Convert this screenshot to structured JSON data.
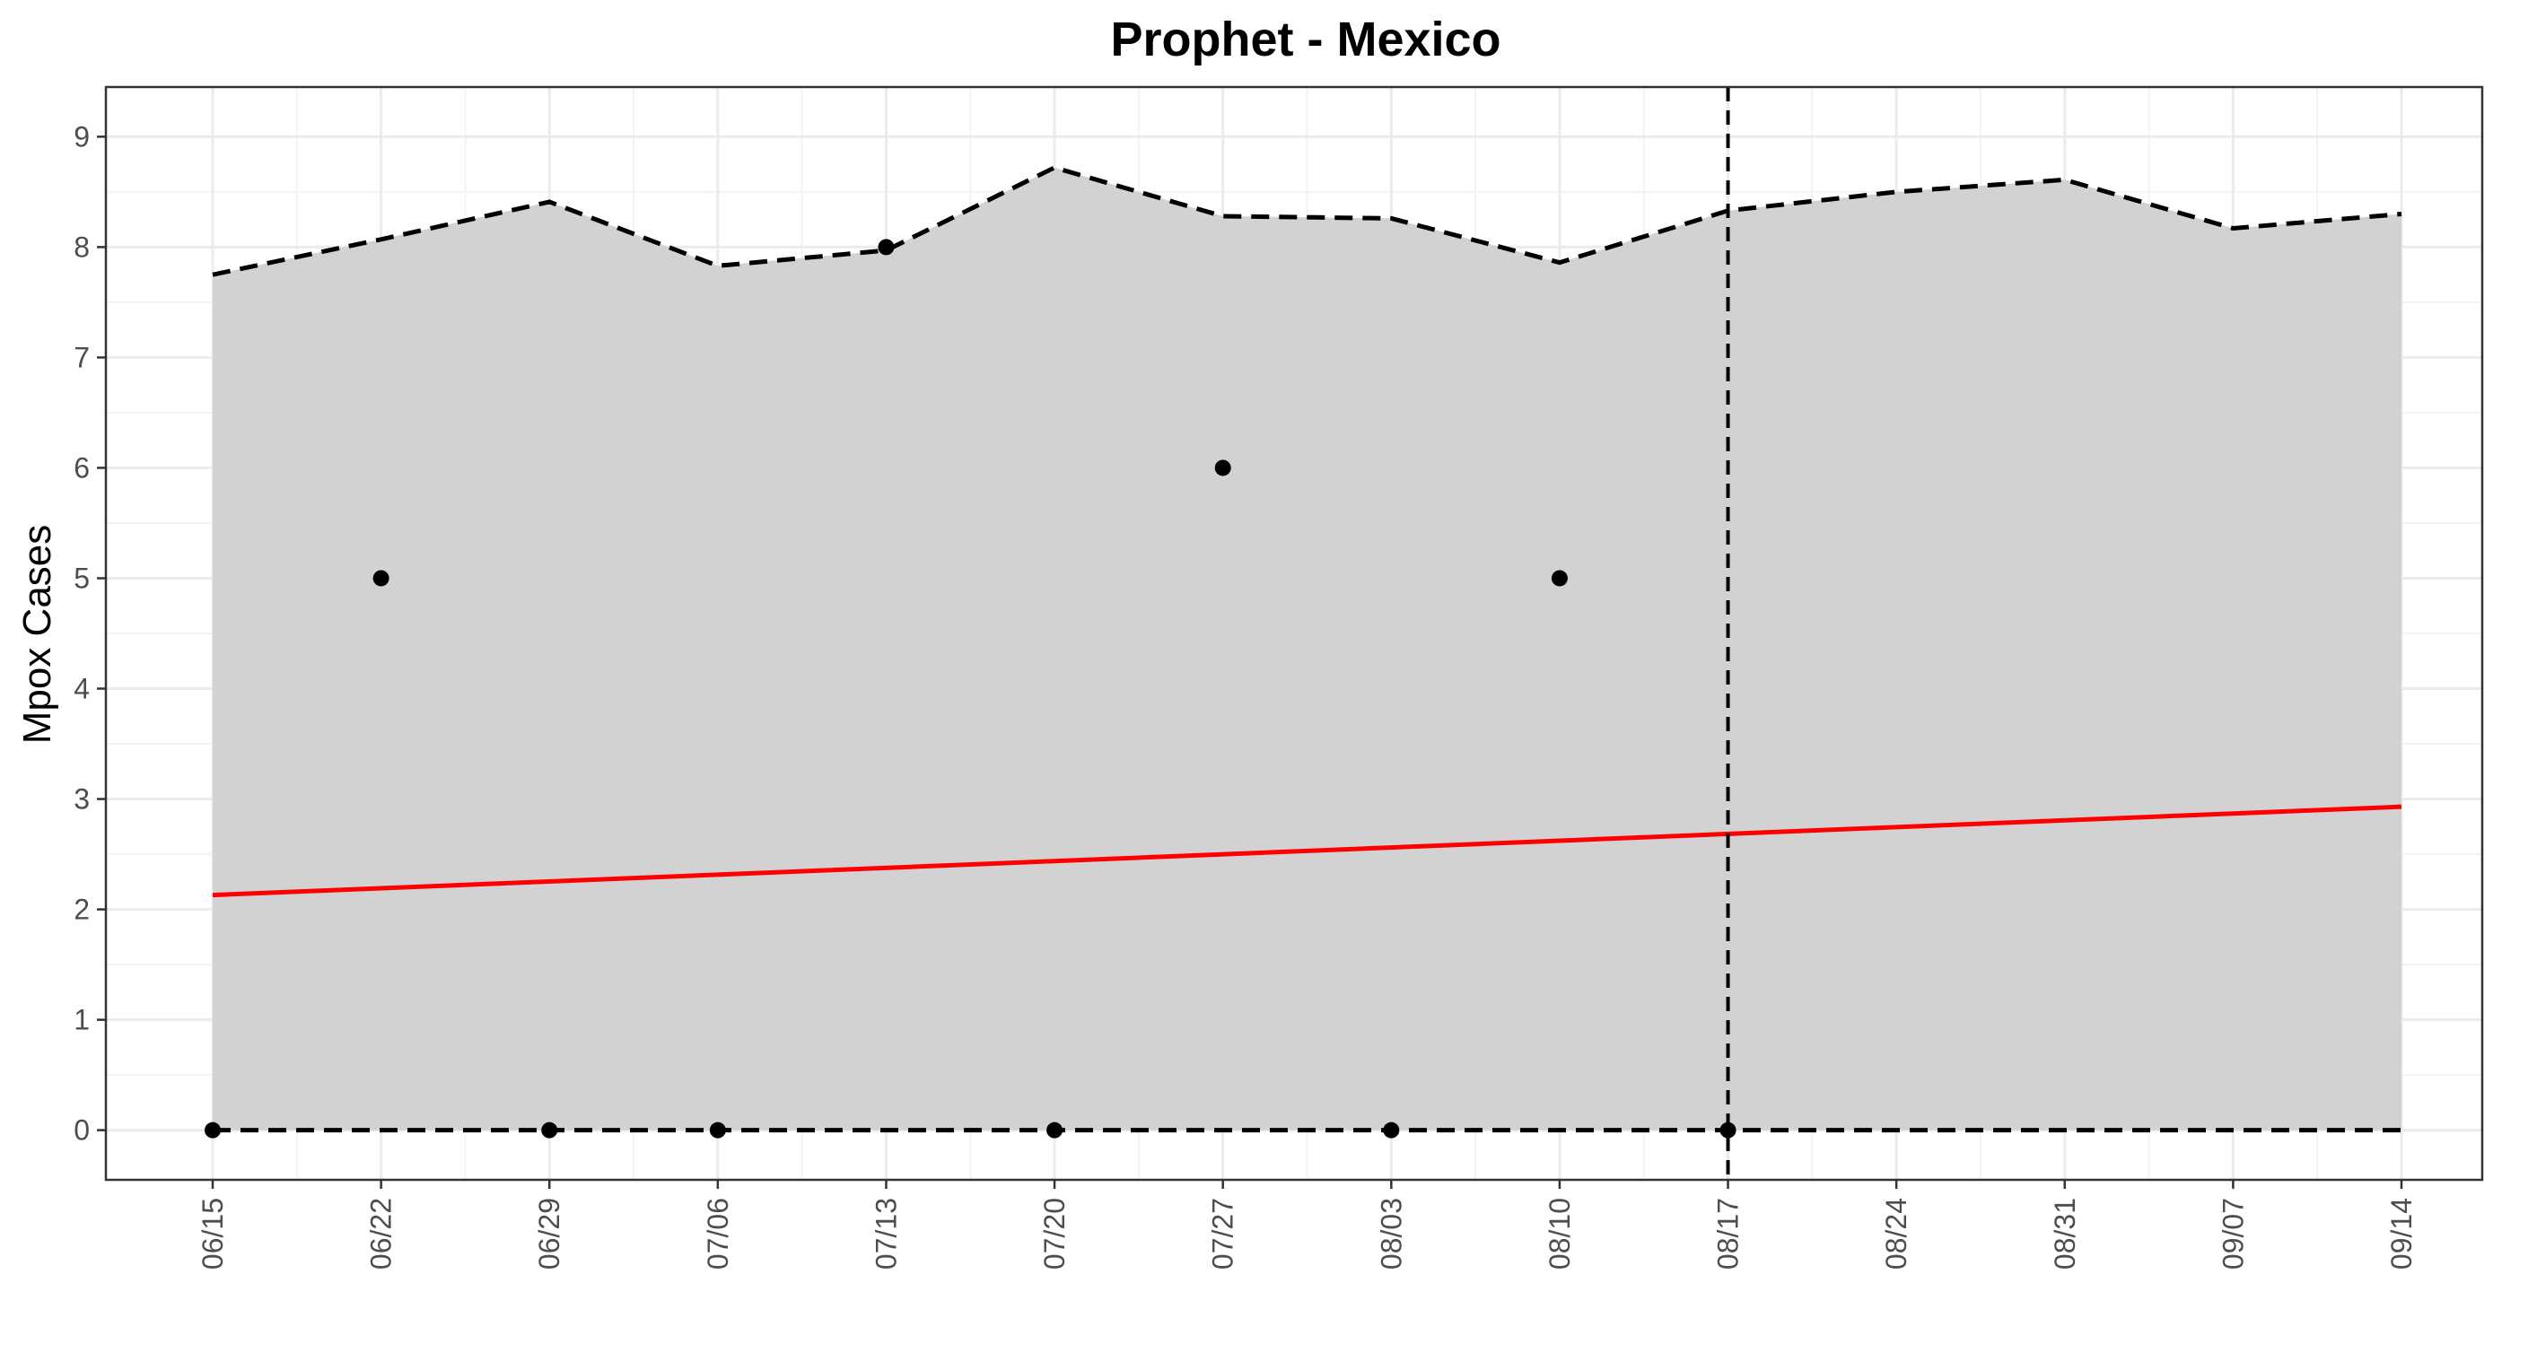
{
  "chart_data": {
    "type": "line",
    "title": "Prophet - Mexico",
    "xlabel": "",
    "ylabel": "Mpox Cases",
    "x_tick_labels": [
      "06/15",
      "06/22",
      "06/29",
      "07/06",
      "07/13",
      "07/20",
      "07/27",
      "08/03",
      "08/10",
      "08/17",
      "08/24",
      "08/31",
      "09/07",
      "09/14"
    ],
    "y_tick_labels": [
      "0",
      "1",
      "2",
      "3",
      "4",
      "5",
      "6",
      "7",
      "8",
      "9"
    ],
    "ylim": [
      -0.45,
      9.45
    ],
    "grid": true,
    "cutoff_x": "08/17",
    "series": [
      {
        "kind": "observed_points",
        "x": [
          "06/15",
          "06/22",
          "06/29",
          "07/06",
          "07/13",
          "07/20",
          "07/27",
          "08/03",
          "08/10",
          "08/17"
        ],
        "values": [
          0,
          5,
          0,
          0,
          8,
          0,
          6,
          0,
          5,
          0
        ]
      },
      {
        "kind": "forecast_line",
        "x": [
          "06/15",
          "09/14"
        ],
        "values": [
          2.13,
          2.93
        ]
      },
      {
        "kind": "upper_bound",
        "x": [
          "06/15",
          "06/22",
          "06/29",
          "07/06",
          "07/13",
          "07/20",
          "07/27",
          "08/03",
          "08/10",
          "08/17",
          "08/24",
          "08/31",
          "09/07",
          "09/14"
        ],
        "values": [
          7.75,
          8.07,
          8.41,
          7.83,
          7.97,
          8.72,
          8.28,
          8.26,
          7.86,
          8.33,
          8.5,
          8.61,
          8.17,
          8.3
        ]
      },
      {
        "kind": "lower_bound",
        "x": [
          "06/15",
          "06/22",
          "06/29",
          "07/06",
          "07/13",
          "07/20",
          "07/27",
          "08/03",
          "08/10",
          "08/17",
          "08/24",
          "08/31",
          "09/07",
          "09/14"
        ],
        "values": [
          0,
          0,
          0,
          0,
          0,
          0,
          0,
          0,
          0,
          0,
          0,
          0,
          0,
          0
        ]
      }
    ],
    "colors": {
      "band_fill": "#d2d2d2",
      "forecast_line": "#ff0000",
      "points": "#000000",
      "bounds": "#000000",
      "grid_major": "#ebebeb",
      "grid_minor": "#f3f3f3",
      "panel_border": "#333333"
    }
  }
}
